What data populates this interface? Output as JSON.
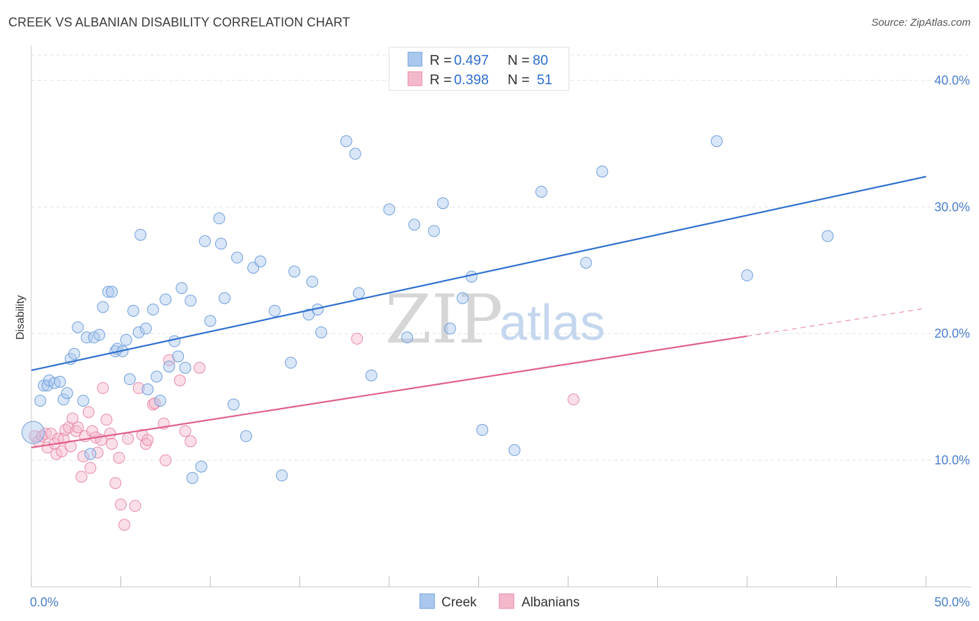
{
  "title": "CREEK VS ALBANIAN DISABILITY CORRELATION CHART",
  "source": "Source: ZipAtlas.com",
  "watermark": {
    "zip": "ZIP",
    "atlas": "atlas"
  },
  "colors": {
    "creek": "#2f6fcf",
    "creek_fill": "#aac8ee",
    "albanian": "#e0608a",
    "albanian_fill": "#f4b8cb",
    "tick": "#4a7fcf",
    "grid": "#e2e2e2"
  },
  "chart_data": {
    "type": "scatter",
    "title": "CREEK VS ALBANIAN DISABILITY CORRELATION CHART",
    "ylabel": "Disability",
    "xlim": [
      0,
      50
    ],
    "ylim": [
      0,
      42
    ],
    "x_tick_labels": [
      "0.0%",
      "50.0%"
    ],
    "y_ticks": [
      10,
      20,
      30,
      40
    ],
    "y_tick_labels": [
      "10.0%",
      "20.0%",
      "30.0%",
      "40.0%"
    ],
    "legend": [
      {
        "series": "Creek",
        "r_label": "R =",
        "r_value": "0.497",
        "n_label": "N =",
        "n_value": "80"
      },
      {
        "series": "Albanians",
        "r_label": "R =",
        "r_value": "0.398",
        "n_label": "N =",
        "n_value": "51"
      }
    ],
    "series": [
      {
        "name": "Creek",
        "trend": {
          "x0": 0,
          "y0": 17.1,
          "x1": 50,
          "y1": 32.4,
          "dashed_from": null
        },
        "points": [
          [
            0.1,
            12.2
          ],
          [
            0.5,
            14.7
          ],
          [
            0.7,
            15.9
          ],
          [
            0.9,
            15.9
          ],
          [
            1.0,
            16.3
          ],
          [
            1.3,
            16.1
          ],
          [
            1.6,
            16.2
          ],
          [
            1.8,
            14.8
          ],
          [
            2.0,
            15.3
          ],
          [
            2.2,
            18.0
          ],
          [
            2.4,
            18.4
          ],
          [
            2.6,
            20.5
          ],
          [
            2.9,
            14.7
          ],
          [
            3.1,
            19.7
          ],
          [
            3.3,
            10.5
          ],
          [
            3.5,
            19.7
          ],
          [
            3.8,
            19.9
          ],
          [
            4.0,
            22.1
          ],
          [
            4.3,
            23.3
          ],
          [
            4.5,
            23.3
          ],
          [
            4.7,
            18.6
          ],
          [
            4.8,
            18.8
          ],
          [
            5.1,
            18.6
          ],
          [
            5.3,
            19.5
          ],
          [
            5.5,
            16.4
          ],
          [
            5.7,
            21.8
          ],
          [
            6.0,
            20.1
          ],
          [
            6.1,
            27.8
          ],
          [
            6.4,
            20.4
          ],
          [
            6.5,
            15.6
          ],
          [
            6.8,
            21.9
          ],
          [
            7.0,
            16.6
          ],
          [
            7.2,
            14.7
          ],
          [
            7.5,
            22.7
          ],
          [
            7.7,
            17.4
          ],
          [
            8.0,
            19.4
          ],
          [
            8.2,
            18.2
          ],
          [
            8.4,
            23.6
          ],
          [
            8.6,
            17.3
          ],
          [
            8.9,
            22.6
          ],
          [
            9.0,
            8.6
          ],
          [
            9.5,
            9.5
          ],
          [
            9.7,
            27.3
          ],
          [
            10.0,
            21.0
          ],
          [
            10.5,
            29.1
          ],
          [
            10.6,
            27.1
          ],
          [
            10.8,
            22.8
          ],
          [
            11.3,
            14.4
          ],
          [
            11.5,
            26.0
          ],
          [
            12.0,
            11.9
          ],
          [
            12.4,
            25.2
          ],
          [
            12.8,
            25.7
          ],
          [
            13.6,
            21.8
          ],
          [
            14.0,
            8.8
          ],
          [
            14.5,
            17.7
          ],
          [
            14.7,
            24.9
          ],
          [
            15.5,
            21.5
          ],
          [
            15.7,
            24.1
          ],
          [
            16.0,
            21.9
          ],
          [
            16.2,
            20.1
          ],
          [
            17.6,
            35.2
          ],
          [
            18.1,
            34.2
          ],
          [
            18.3,
            23.2
          ],
          [
            19.0,
            16.7
          ],
          [
            20.0,
            29.8
          ],
          [
            21.0,
            19.7
          ],
          [
            21.4,
            28.6
          ],
          [
            22.5,
            28.1
          ],
          [
            23.0,
            30.3
          ],
          [
            23.4,
            20.4
          ],
          [
            24.1,
            22.8
          ],
          [
            24.6,
            24.5
          ],
          [
            25.2,
            12.4
          ],
          [
            27.0,
            10.8
          ],
          [
            28.5,
            31.2
          ],
          [
            31.0,
            25.6
          ],
          [
            31.9,
            32.8
          ],
          [
            38.3,
            35.2
          ],
          [
            40.0,
            24.6
          ],
          [
            44.5,
            27.7
          ]
        ]
      },
      {
        "name": "Albanians",
        "trend": {
          "x0": 0,
          "y0": 11.0,
          "x1": 50,
          "y1": 22.0,
          "solid_until_x": 40
        },
        "points": [
          [
            0.2,
            11.9
          ],
          [
            0.4,
            11.5
          ],
          [
            0.6,
            11.9
          ],
          [
            0.8,
            12.1
          ],
          [
            0.9,
            11.0
          ],
          [
            1.1,
            12.1
          ],
          [
            1.3,
            11.3
          ],
          [
            1.4,
            10.5
          ],
          [
            1.5,
            11.7
          ],
          [
            1.7,
            10.7
          ],
          [
            1.8,
            11.7
          ],
          [
            1.9,
            12.4
          ],
          [
            2.1,
            12.6
          ],
          [
            2.2,
            11.1
          ],
          [
            2.3,
            13.3
          ],
          [
            2.5,
            12.3
          ],
          [
            2.6,
            12.6
          ],
          [
            2.8,
            8.7
          ],
          [
            2.9,
            10.3
          ],
          [
            3.0,
            11.9
          ],
          [
            3.2,
            13.8
          ],
          [
            3.3,
            9.4
          ],
          [
            3.4,
            12.3
          ],
          [
            3.6,
            11.8
          ],
          [
            3.7,
            10.6
          ],
          [
            3.9,
            11.6
          ],
          [
            4.0,
            15.7
          ],
          [
            4.2,
            13.2
          ],
          [
            4.4,
            12.1
          ],
          [
            4.5,
            11.3
          ],
          [
            4.7,
            8.2
          ],
          [
            4.9,
            10.2
          ],
          [
            5.0,
            6.5
          ],
          [
            5.2,
            4.9
          ],
          [
            5.4,
            11.7
          ],
          [
            5.8,
            6.4
          ],
          [
            6.0,
            15.7
          ],
          [
            6.2,
            12.0
          ],
          [
            6.4,
            11.3
          ],
          [
            6.5,
            11.6
          ],
          [
            6.8,
            14.4
          ],
          [
            6.9,
            14.5
          ],
          [
            7.4,
            12.9
          ],
          [
            7.5,
            10.0
          ],
          [
            7.7,
            17.9
          ],
          [
            8.3,
            16.3
          ],
          [
            8.6,
            12.3
          ],
          [
            8.9,
            11.5
          ],
          [
            9.4,
            17.3
          ],
          [
            18.2,
            19.6
          ],
          [
            30.3,
            14.8
          ]
        ]
      }
    ]
  },
  "bottom_legend": [
    {
      "label": "Creek"
    },
    {
      "label": "Albanians"
    }
  ]
}
